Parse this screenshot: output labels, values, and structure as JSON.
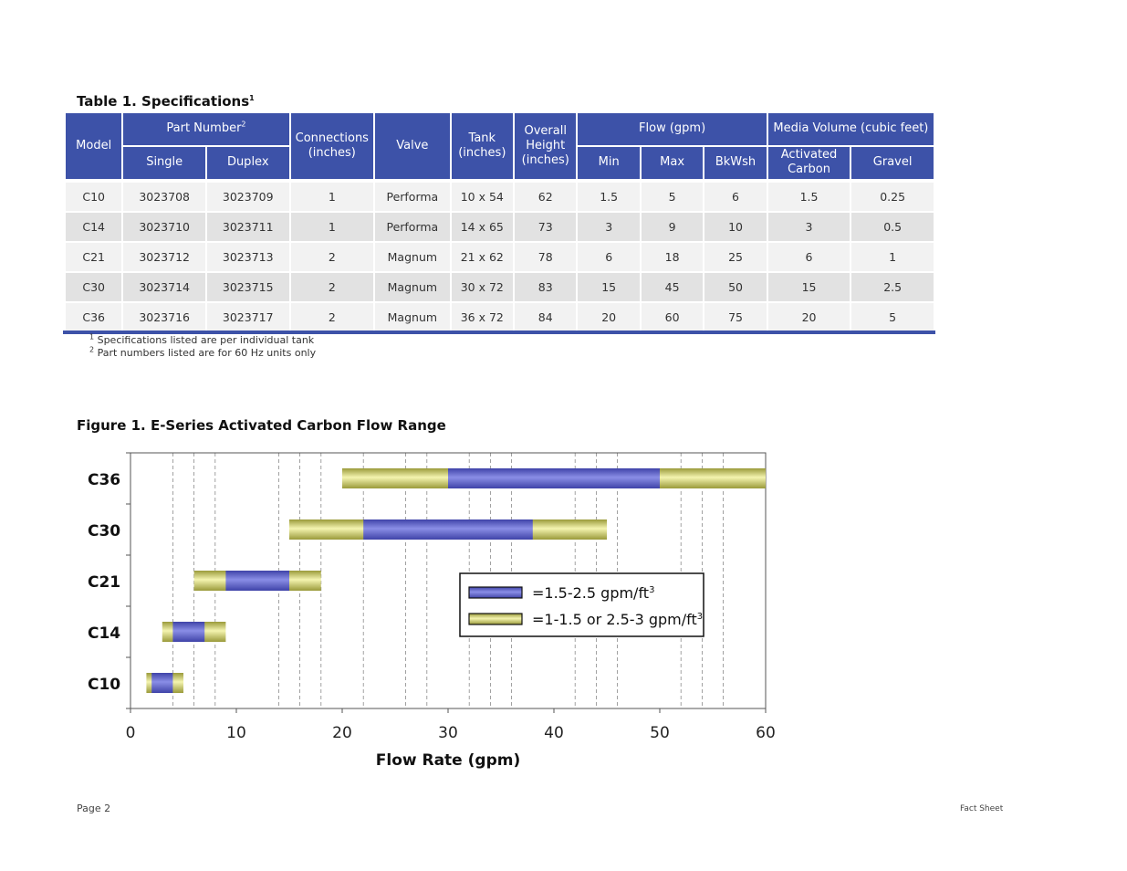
{
  "table": {
    "title": "Table 1.  Specifications",
    "title_sup": "1",
    "headers": {
      "model": "Model",
      "part_number": "Part Number",
      "part_number_sup": "2",
      "single": "Single",
      "duplex": "Duplex",
      "connections": "Connections (inches)",
      "valve": "Valve",
      "tank": "Tank (inches)",
      "overall_height": "Overall Height (inches)",
      "flow": "Flow (gpm)",
      "min": "Min",
      "max": "Max",
      "bkwsh": "BkWsh",
      "media_volume": "Media Volume (cubic feet)",
      "activated_carbon": "Activated Carbon",
      "gravel": "Gravel"
    },
    "rows": [
      {
        "model": "C10",
        "single": "3023708",
        "duplex": "3023709",
        "connections": "1",
        "valve": "Performa",
        "tank": "10 x 54",
        "height": "62",
        "min": "1.5",
        "max": "5",
        "bkwsh": "6",
        "carbon": "1.5",
        "gravel": "0.25"
      },
      {
        "model": "C14",
        "single": "3023710",
        "duplex": "3023711",
        "connections": "1",
        "valve": "Performa",
        "tank": "14 x 65",
        "height": "73",
        "min": "3",
        "max": "9",
        "bkwsh": "10",
        "carbon": "3",
        "gravel": "0.5"
      },
      {
        "model": "C21",
        "single": "3023712",
        "duplex": "3023713",
        "connections": "2",
        "valve": "Magnum",
        "tank": "21 x 62",
        "height": "78",
        "min": "6",
        "max": "18",
        "bkwsh": "25",
        "carbon": "6",
        "gravel": "1"
      },
      {
        "model": "C30",
        "single": "3023714",
        "duplex": "3023715",
        "connections": "2",
        "valve": "Magnum",
        "tank": "30 x 72",
        "height": "83",
        "min": "15",
        "max": "45",
        "bkwsh": "50",
        "carbon": "15",
        "gravel": "2.5"
      },
      {
        "model": "C36",
        "single": "3023716",
        "duplex": "3023717",
        "connections": "2",
        "valve": "Magnum",
        "tank": "36 x 72",
        "height": "84",
        "min": "20",
        "max": "60",
        "bkwsh": "75",
        "carbon": "20",
        "gravel": "5"
      }
    ],
    "footnotes": [
      {
        "sup": "1",
        "text": "Specifications listed are per individual tank"
      },
      {
        "sup": "2",
        "text": "Part numbers listed are for 60 Hz units only"
      }
    ],
    "header_color": "#3d52a8"
  },
  "figure": {
    "title": "Figure 1. E-Series Activated Carbon Flow Range"
  },
  "chart_data": {
    "type": "bar",
    "orientation": "horizontal",
    "title": "Figure 1. E-Series Activated Carbon Flow Range",
    "xlabel": "Flow Rate (gpm)",
    "ylabel": "",
    "xlim": [
      0,
      60
    ],
    "xticks": [
      "0",
      "10",
      "20",
      "30",
      "40",
      "50",
      "60"
    ],
    "categories": [
      "C36",
      "C30",
      "C21",
      "C14",
      "C10"
    ],
    "ranges": [
      {
        "model": "C36",
        "outer": [
          20,
          60
        ],
        "inner": [
          30,
          50
        ]
      },
      {
        "model": "C30",
        "outer": [
          15,
          45
        ],
        "inner": [
          22,
          38
        ]
      },
      {
        "model": "C21",
        "outer": [
          6,
          18
        ],
        "inner": [
          9,
          15
        ]
      },
      {
        "model": "C14",
        "outer": [
          3,
          9
        ],
        "inner": [
          4,
          7
        ]
      },
      {
        "model": "C10",
        "outer": [
          1.5,
          5
        ],
        "inner": [
          2,
          4
        ]
      }
    ],
    "gridlines_x": [
      4,
      6,
      8,
      14,
      16,
      18,
      22,
      26,
      28,
      32,
      34,
      36,
      42,
      44,
      46,
      52,
      54,
      56
    ],
    "legend": {
      "position": "center-right",
      "items": [
        {
          "label": "=1.5-2.5 gpm/ft",
          "sup": "3",
          "color": "#5b5fc7"
        },
        {
          "label": "=1-1.5 or 2.5-3 gpm/ft",
          "sup": "3",
          "color": "#e6e68a"
        }
      ]
    },
    "colors": {
      "inner": "#5b5fc7",
      "outer": "#e6e68a"
    }
  },
  "footer": {
    "page": "Page 2",
    "label": "Fact Sheet"
  }
}
